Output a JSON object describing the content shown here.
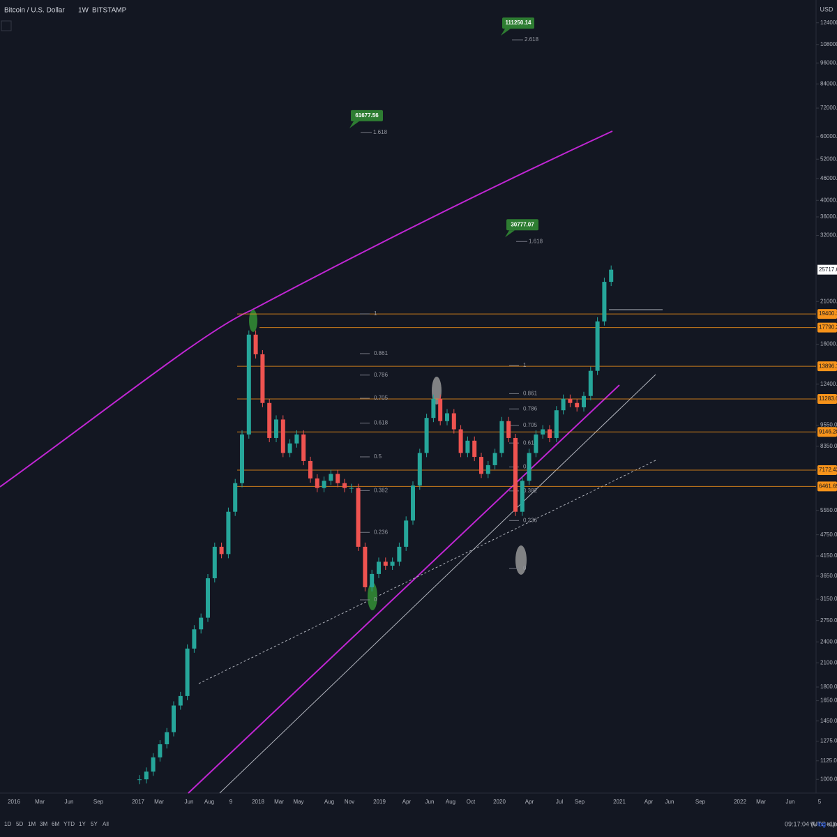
{
  "header": {
    "symbol": "Bitcoin / U.S. Dollar",
    "interval": "1W",
    "exchange": "BITSTAMP",
    "currency": "USD"
  },
  "chart_data": {
    "type": "candlestick",
    "log_scale": true,
    "ylim": [
      916,
      143400
    ],
    "closes": [
      1000,
      1050,
      1150,
      1250,
      1350,
      1600,
      1700,
      2300,
      2600,
      2800,
      3600,
      4400,
      4200,
      5500,
      6600,
      9000,
      17000,
      15000,
      11000,
      8800,
      9900,
      8000,
      8500,
      9000,
      7600,
      6800,
      6400,
      6700,
      7000,
      6600,
      6400,
      6400,
      4400,
      3400,
      3700,
      4000,
      3900,
      4000,
      4400,
      5200,
      6500,
      8000,
      10000,
      11300,
      9800,
      10300,
      9300,
      8000,
      8650,
      7800,
      7000,
      7400,
      8000,
      9800,
      8800,
      5500,
      6700,
      8000,
      9000,
      9300,
      8800,
      10500,
      11300,
      11000,
      10700,
      11500,
      13500,
      18500,
      23800,
      25717.69
    ],
    "up_color": "#26a69a",
    "down_color": "#ef5350",
    "yticks": [
      {
        "value": 124000,
        "label": "124000.00"
      },
      {
        "value": 108000,
        "label": "108000.00"
      },
      {
        "value": 96000,
        "label": "96000.00"
      },
      {
        "value": 84000,
        "label": "84000.00"
      },
      {
        "value": 72000,
        "label": "72000.00"
      },
      {
        "value": 60000,
        "label": "60000.00"
      },
      {
        "value": 52000,
        "label": "52000.00"
      },
      {
        "value": 46000,
        "label": "46000.00"
      },
      {
        "value": 40000,
        "label": "40000.00"
      },
      {
        "value": 36000,
        "label": "36000.00"
      },
      {
        "value": 32000,
        "label": "32000.00"
      },
      {
        "value": 21000,
        "label": "21000.00"
      },
      {
        "value": 16000,
        "label": "16000.00"
      },
      {
        "value": 12400,
        "label": "12400.00"
      },
      {
        "value": 9550,
        "label": "9550.00"
      },
      {
        "value": 8350,
        "label": "8350.00"
      },
      {
        "value": 5550,
        "label": "5550.00"
      },
      {
        "value": 4750,
        "label": "4750.00"
      },
      {
        "value": 4150,
        "label": "4150.00"
      },
      {
        "value": 3650,
        "label": "3650.00"
      },
      {
        "value": 3150,
        "label": "3150.00"
      },
      {
        "value": 2750,
        "label": "2750.00"
      },
      {
        "value": 2400,
        "label": "2400.00"
      },
      {
        "value": 2100,
        "label": "2100.00"
      },
      {
        "value": 1800,
        "label": "1800.00"
      },
      {
        "value": 1650,
        "label": "1650.00"
      },
      {
        "value": 1450,
        "label": "1450.00"
      },
      {
        "value": 1275,
        "label": "1275.00"
      },
      {
        "value": 1125,
        "label": "1125.00"
      },
      {
        "value": 1000,
        "label": "1000.00"
      }
    ],
    "levels": [
      19400.15,
      17790.26,
      13896.13,
      11283.63,
      9146.28,
      7172.42,
      6461.69
    ],
    "level_color": "#f7931a",
    "targets": [
      {
        "price": 111250.14,
        "ratio": 2.618
      },
      {
        "price": 61677.56,
        "ratio": 1.618
      },
      {
        "price": 30777.07,
        "ratio": 1.618
      }
    ],
    "fib_left": [
      1,
      0.861,
      0.786,
      0.705,
      0.618,
      0.5,
      0.382,
      0.236,
      0
    ],
    "fib_right": [
      1,
      0.861,
      0.786,
      0.705,
      0.618,
      0.5,
      0.382,
      0.236,
      0
    ],
    "time_labels": [
      "2016",
      "Mar",
      "Jun",
      "Sep",
      "2017",
      "Mar",
      "Jun",
      "Aug",
      "9",
      "2018",
      "Mar",
      "May",
      "Aug",
      "Nov",
      "2019",
      "Apr",
      "Jun",
      "Aug",
      "Oct",
      "2020",
      "Apr",
      "Jul",
      "Sep",
      "2021",
      "Apr",
      "Jun",
      "Sep",
      "2022",
      "Mar",
      "Jun",
      "5"
    ]
  },
  "footer": {
    "ranges": [
      "1D",
      "5D",
      "1M",
      "3M",
      "6M",
      "YTD",
      "1Y",
      "5Y",
      "All"
    ],
    "clock": "09:17:04 (UTC+1)",
    "percent": "%",
    "log": "log",
    "auto": "auto"
  }
}
